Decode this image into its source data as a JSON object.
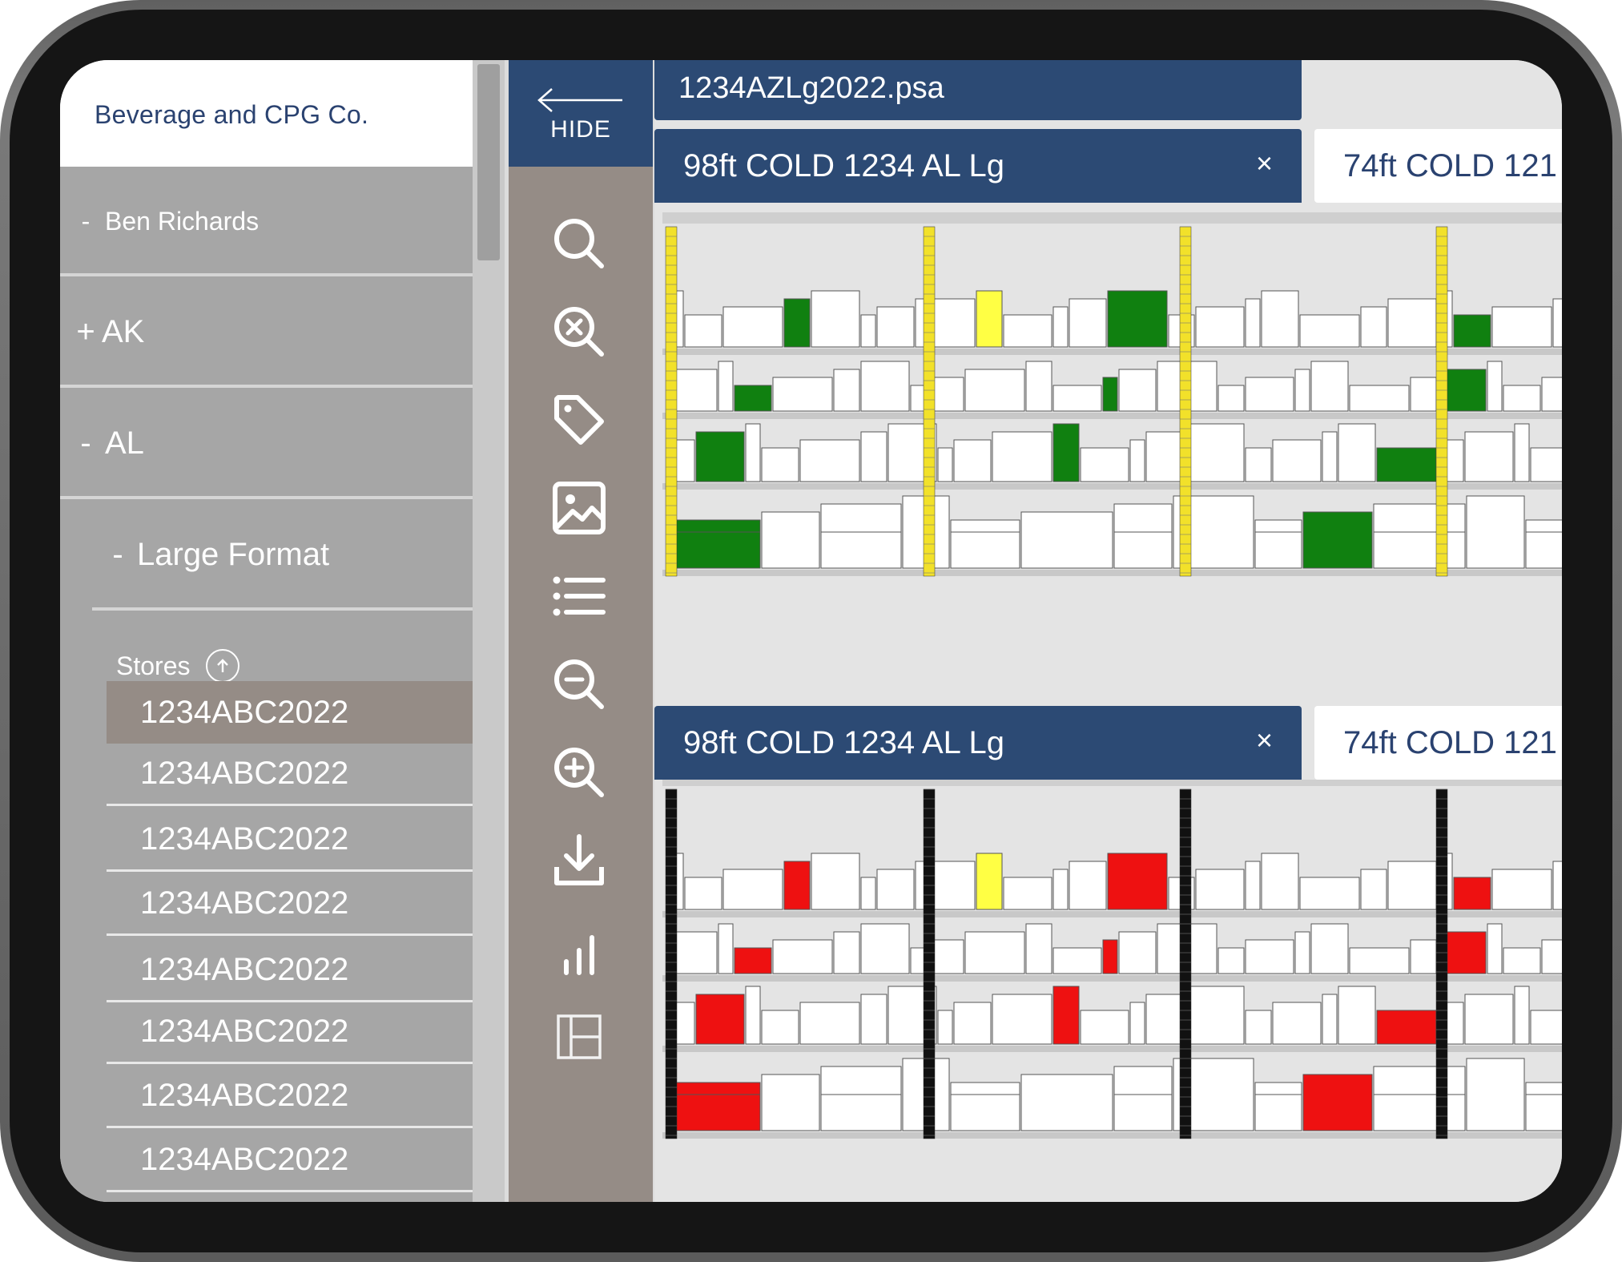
{
  "sidebar": {
    "company": "Beverage and CPG Co.",
    "user": {
      "symbol": "-",
      "label": "Ben Richards"
    },
    "tree": [
      {
        "symbol": "+",
        "label": "AK"
      },
      {
        "symbol": "-",
        "label": "AL"
      },
      {
        "symbol": "-",
        "label": "Large Format"
      }
    ],
    "stores_label": "Stores",
    "stores": [
      "1234ABC2022",
      "1234ABC2022",
      "1234ABC2022",
      "1234ABC2022",
      "1234ABC2022",
      "1234ABC2022",
      "1234ABC2022",
      "1234ABC2022"
    ]
  },
  "toolbar": {
    "hide_label": "HIDE",
    "tools": [
      "search-icon",
      "clear-search-icon",
      "tag-icon",
      "image-icon",
      "list-icon",
      "zoom-out-icon",
      "zoom-in-icon",
      "download-icon",
      "bar-chart-icon",
      "layout-icon"
    ]
  },
  "main": {
    "file_name": "1234AZLg2022.psa",
    "panes": [
      {
        "active_tab": "98ft COLD 1234 AL Lg",
        "close": "×",
        "other_tab": "74ft COLD 121",
        "highlight_colors": [
          "#ffff44",
          "#108010"
        ],
        "upright_color": "#f2e12a"
      },
      {
        "active_tab": "98ft COLD 1234 AL Lg",
        "close": "×",
        "other_tab": "74ft COLD 121",
        "highlight_colors": [
          "#ffff44",
          "#ee1111"
        ],
        "upright_color": "#111111"
      }
    ]
  },
  "colors": {
    "navy": "#2c4a74",
    "sidebar": "#a6a6a6",
    "toolbar": "#958c86",
    "selected": "#958c86"
  }
}
